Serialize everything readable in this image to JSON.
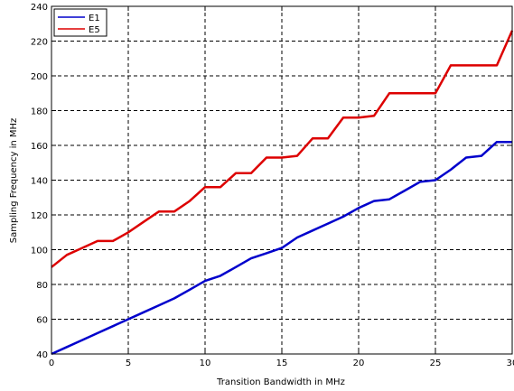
{
  "chart_data": {
    "type": "line",
    "title": "",
    "xlabel": "Transition Bandwidth in MHz",
    "ylabel": "Sampling Frequency in MHz",
    "xlim": [
      0,
      30
    ],
    "ylim": [
      40,
      240
    ],
    "xticks": [
      0,
      5,
      10,
      15,
      20,
      25,
      30
    ],
    "yticks": [
      40,
      60,
      80,
      100,
      120,
      140,
      160,
      180,
      200,
      220,
      240
    ],
    "grid": true,
    "legend_position": "top-left",
    "series": [
      {
        "name": "E1",
        "color": "#0000cc",
        "x": [
          0,
          1,
          2,
          3,
          4,
          5,
          6,
          7,
          8,
          9,
          10,
          11,
          12,
          13,
          14,
          15,
          16,
          17,
          18,
          19,
          20,
          21,
          22,
          23,
          24,
          25,
          26,
          27,
          28,
          29,
          30
        ],
        "y": [
          40,
          44,
          48,
          52,
          56,
          60,
          64,
          68,
          72,
          77,
          82,
          85,
          90,
          95,
          98,
          101,
          107,
          111,
          115,
          119,
          124,
          128,
          129,
          134,
          139,
          140,
          146,
          153,
          154,
          162,
          162
        ]
      },
      {
        "name": "E5",
        "color": "#dd0000",
        "x": [
          0,
          1,
          2,
          3,
          4,
          5,
          6,
          7,
          8,
          9,
          10,
          11,
          12,
          13,
          14,
          15,
          16,
          17,
          18,
          19,
          20,
          21,
          22,
          23,
          24,
          25,
          26,
          27,
          28,
          29,
          30
        ],
        "y": [
          90,
          97,
          101,
          105,
          105,
          110,
          116,
          122,
          122,
          128,
          136,
          136,
          144,
          144,
          153,
          153,
          154,
          164,
          164,
          176,
          176,
          177,
          190,
          190,
          190,
          190,
          206,
          206,
          206,
          206,
          226
        ]
      }
    ]
  }
}
